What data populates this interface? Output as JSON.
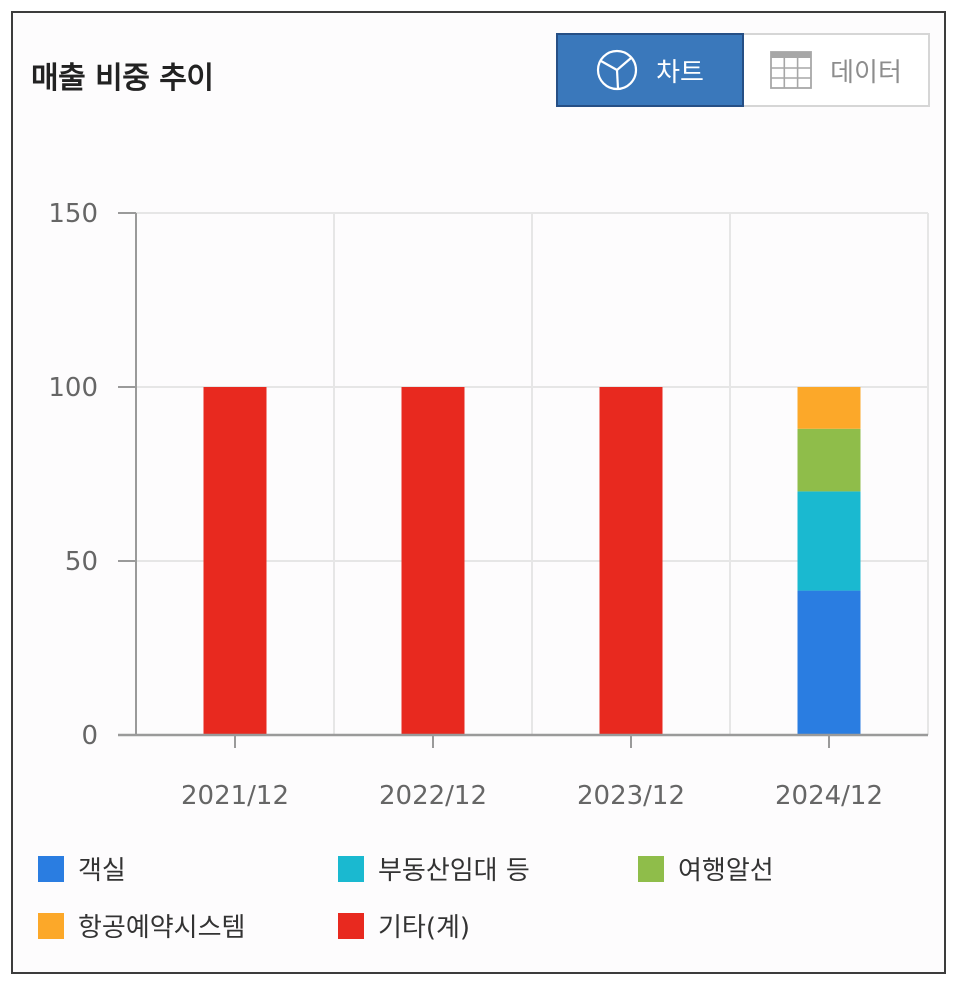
{
  "title": "매출 비중 추이",
  "toggle": {
    "chart_label": "차트",
    "data_label": "데이터",
    "chart_icon": "pie-chart-icon",
    "data_icon": "table-grid-icon"
  },
  "colors": {
    "active_button": "#3a78bb",
    "객실": "#2a7de1",
    "부동산임대 등": "#1ab9d0",
    "여행알선": "#8fbd4a",
    "항공예약시스템": "#fca829",
    "기타(계)": "#e8291f"
  },
  "chart_data": {
    "type": "bar",
    "stacked": true,
    "categories": [
      "2021/12",
      "2022/12",
      "2023/12",
      "2024/12"
    ],
    "ylim": [
      0,
      150
    ],
    "yticks": [
      0,
      50,
      100,
      150
    ],
    "grid": true,
    "legend_position": "bottom",
    "series": [
      {
        "name": "객실",
        "color": "#2a7de1",
        "values": [
          0,
          0,
          0,
          41.5
        ]
      },
      {
        "name": "부동산임대 등",
        "color": "#1ab9d0",
        "values": [
          0,
          0,
          0,
          28.5
        ]
      },
      {
        "name": "여행알선",
        "color": "#8fbd4a",
        "values": [
          0,
          0,
          0,
          18
        ]
      },
      {
        "name": "항공예약시스템",
        "color": "#fca829",
        "values": [
          0,
          0,
          0,
          12
        ]
      },
      {
        "name": "기타(계)",
        "color": "#e8291f",
        "values": [
          100,
          100,
          100,
          0
        ]
      }
    ]
  }
}
